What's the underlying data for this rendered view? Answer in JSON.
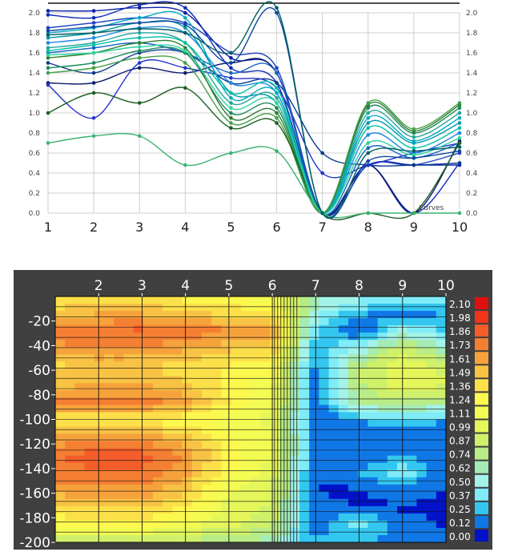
{
  "chart_data": [
    {
      "type": "line",
      "annotation": "Curves",
      "x_ticks": [
        "1",
        "2",
        "3",
        "4",
        "5",
        "6",
        "7",
        "8",
        "9",
        "10"
      ],
      "y_ticks": [
        "0.0",
        "0.2",
        "0.4",
        "0.6",
        "0.8",
        "1.0",
        "1.2",
        "1.4",
        "1.6",
        "1.8",
        "2.0"
      ],
      "x": [
        1,
        2,
        3,
        4,
        5,
        6,
        7,
        8,
        9,
        10
      ],
      "ylim": [
        0,
        2.0
      ],
      "grid": true,
      "series": [
        {
          "color": "#0a1fa8",
          "values": [
            2.02,
            2.02,
            2.05,
            2.0,
            1.55,
            1.4,
            0.0,
            0.48,
            0.48,
            0.48
          ]
        },
        {
          "color": "#102ab8",
          "values": [
            1.98,
            1.95,
            2.08,
            2.05,
            1.45,
            1.3,
            0.0,
            0.48,
            0.0,
            0.5
          ]
        },
        {
          "color": "#1e40c0",
          "values": [
            1.85,
            1.9,
            1.95,
            1.9,
            1.6,
            1.45,
            0.0,
            0.48,
            0.48,
            0.6
          ]
        },
        {
          "color": "#0d1b6b",
          "values": [
            1.3,
            1.3,
            1.45,
            1.4,
            1.5,
            1.4,
            0.0,
            0.48,
            0.0,
            0.72
          ]
        },
        {
          "color": "#0b3a8a",
          "values": [
            1.5,
            1.4,
            1.6,
            1.6,
            1.3,
            1.3,
            0.6,
            0.48,
            0.48,
            0.5
          ]
        },
        {
          "color": "#2233cc",
          "values": [
            1.28,
            0.95,
            1.5,
            1.45,
            1.35,
            1.25,
            0.4,
            0.48,
            0.6,
            0.7
          ]
        },
        {
          "color": "#1565c0",
          "values": [
            1.6,
            1.65,
            1.7,
            1.6,
            1.4,
            1.4,
            0.0,
            0.65,
            0.55,
            0.7
          ]
        },
        {
          "color": "#1e88e5",
          "values": [
            1.7,
            1.75,
            1.85,
            1.8,
            1.3,
            1.2,
            0.0,
            0.78,
            0.6,
            0.8
          ]
        },
        {
          "color": "#0097a7",
          "values": [
            1.75,
            1.8,
            1.9,
            1.85,
            1.2,
            1.1,
            0.0,
            0.9,
            0.7,
            0.9
          ]
        },
        {
          "color": "#00acc1",
          "values": [
            1.8,
            1.85,
            1.95,
            1.95,
            1.15,
            1.2,
            0.0,
            0.95,
            0.72,
            0.95
          ]
        },
        {
          "color": "#26a69a",
          "values": [
            1.65,
            1.7,
            1.8,
            1.7,
            1.1,
            1.15,
            0.0,
            1.0,
            0.76,
            1.0
          ]
        },
        {
          "color": "#1b8a5a",
          "values": [
            1.45,
            1.5,
            1.62,
            1.6,
            1.0,
            1.05,
            0.0,
            1.05,
            0.8,
            1.05
          ]
        },
        {
          "color": "#2e7d32",
          "values": [
            1.55,
            1.6,
            1.7,
            1.65,
            0.95,
            1.0,
            0.0,
            1.08,
            0.82,
            1.08
          ]
        },
        {
          "color": "#43a047",
          "values": [
            1.4,
            1.45,
            1.55,
            1.5,
            0.9,
            0.95,
            0.0,
            1.1,
            0.84,
            1.1
          ]
        },
        {
          "color": "#1b5e20",
          "values": [
            1.0,
            1.2,
            1.1,
            1.25,
            0.85,
            0.9,
            0.0,
            0.0,
            0.0,
            0.7
          ]
        },
        {
          "color": "#3cb371",
          "values": [
            0.7,
            0.77,
            0.77,
            0.48,
            0.6,
            0.62,
            0.0,
            0.0,
            0.0,
            0.0
          ]
        },
        {
          "color": "#00bfa5",
          "values": [
            1.62,
            1.68,
            1.75,
            1.7,
            1.2,
            1.25,
            0.0,
            0.85,
            0.65,
            0.85
          ]
        },
        {
          "color": "#2bd4a0",
          "values": [
            1.58,
            1.6,
            1.66,
            1.62,
            1.05,
            1.1,
            0.0,
            0.7,
            0.58,
            0.75
          ]
        },
        {
          "color": "#0d47a1",
          "values": [
            1.82,
            1.86,
            1.9,
            1.88,
            1.5,
            2.0,
            0.0,
            0.52,
            0.55,
            0.62
          ]
        },
        {
          "color": "#006064",
          "values": [
            1.78,
            1.8,
            1.84,
            1.8,
            1.6,
            2.05,
            0.0,
            0.6,
            0.62,
            0.66
          ]
        }
      ]
    },
    {
      "type": "heatmap",
      "x_ticks": [
        "2",
        "3",
        "4",
        "5",
        "6",
        "7",
        "8",
        "9",
        "10"
      ],
      "y_ticks": [
        "-20",
        "-40",
        "-60",
        "-80",
        "-100",
        "-120",
        "-140",
        "-160",
        "-180",
        "-200"
      ],
      "xlim": [
        1,
        10
      ],
      "ylim": [
        -200,
        0
      ],
      "legend_labels": [
        "2.10",
        "1.98",
        "1.86",
        "1.73",
        "1.61",
        "1.49",
        "1.36",
        "1.24",
        "1.11",
        "0.99",
        "0.87",
        "0.74",
        "0.62",
        "0.50",
        "0.37",
        "0.25",
        "0.12",
        "0.00"
      ],
      "legend_colors": [
        "#e0100f",
        "#f0351b",
        "#f45d2a",
        "#f47f33",
        "#f6a23c",
        "#f8c244",
        "#fce049",
        "#fdf84d",
        "#f4fb52",
        "#e4f65a",
        "#cff06a",
        "#b8ec86",
        "#a4ebb5",
        "#a3f3e8",
        "#7fecf7",
        "#33c7f0",
        "#1077e6",
        "#0212c9"
      ],
      "values": [
        [
          1.3,
          1.35,
          1.35,
          1.25,
          1.2,
          1.1,
          0.6,
          0.5,
          0.45,
          0.4
        ],
        [
          1.5,
          1.55,
          1.55,
          1.45,
          1.4,
          1.3,
          0.5,
          0.2,
          0.15,
          0.2
        ],
        [
          1.8,
          1.8,
          1.85,
          1.75,
          1.7,
          1.6,
          0.3,
          0.05,
          0.5,
          0.3
        ],
        [
          1.6,
          1.65,
          1.65,
          1.55,
          1.45,
          1.4,
          0.2,
          0.5,
          0.9,
          0.6
        ],
        [
          1.4,
          1.45,
          1.45,
          1.35,
          1.3,
          1.2,
          0.15,
          0.8,
          1.0,
          0.9
        ],
        [
          1.5,
          1.55,
          1.55,
          1.45,
          1.25,
          1.1,
          0.1,
          0.8,
          1.05,
          0.95
        ],
        [
          1.7,
          1.75,
          1.75,
          1.6,
          1.3,
          1.1,
          0.1,
          0.7,
          0.8,
          0.7
        ],
        [
          1.3,
          1.3,
          1.3,
          1.2,
          1.1,
          1.0,
          0.1,
          0.2,
          0.3,
          0.2
        ],
        [
          1.55,
          1.6,
          1.6,
          1.45,
          1.2,
          1.05,
          0.1,
          0.1,
          0.1,
          0.1
        ],
        [
          1.8,
          1.85,
          1.85,
          1.65,
          1.25,
          1.05,
          0.1,
          0.05,
          0.2,
          0.1
        ],
        [
          1.75,
          1.8,
          1.8,
          1.6,
          1.2,
          1.0,
          0.05,
          0.2,
          0.4,
          0.1
        ],
        [
          1.6,
          1.65,
          1.65,
          1.45,
          1.1,
          0.95,
          0.05,
          0.05,
          0.1,
          0.05
        ],
        [
          1.4,
          1.45,
          1.45,
          1.3,
          1.0,
          0.9,
          0.1,
          0.05,
          0.05,
          0.05
        ],
        [
          1.2,
          1.25,
          1.25,
          1.1,
          0.95,
          0.85,
          0.1,
          0.4,
          0.1,
          0.05
        ],
        [
          0.8,
          0.8,
          0.8,
          0.8,
          0.7,
          0.6,
          0.2,
          0.2,
          0.15,
          0.1
        ]
      ]
    }
  ]
}
